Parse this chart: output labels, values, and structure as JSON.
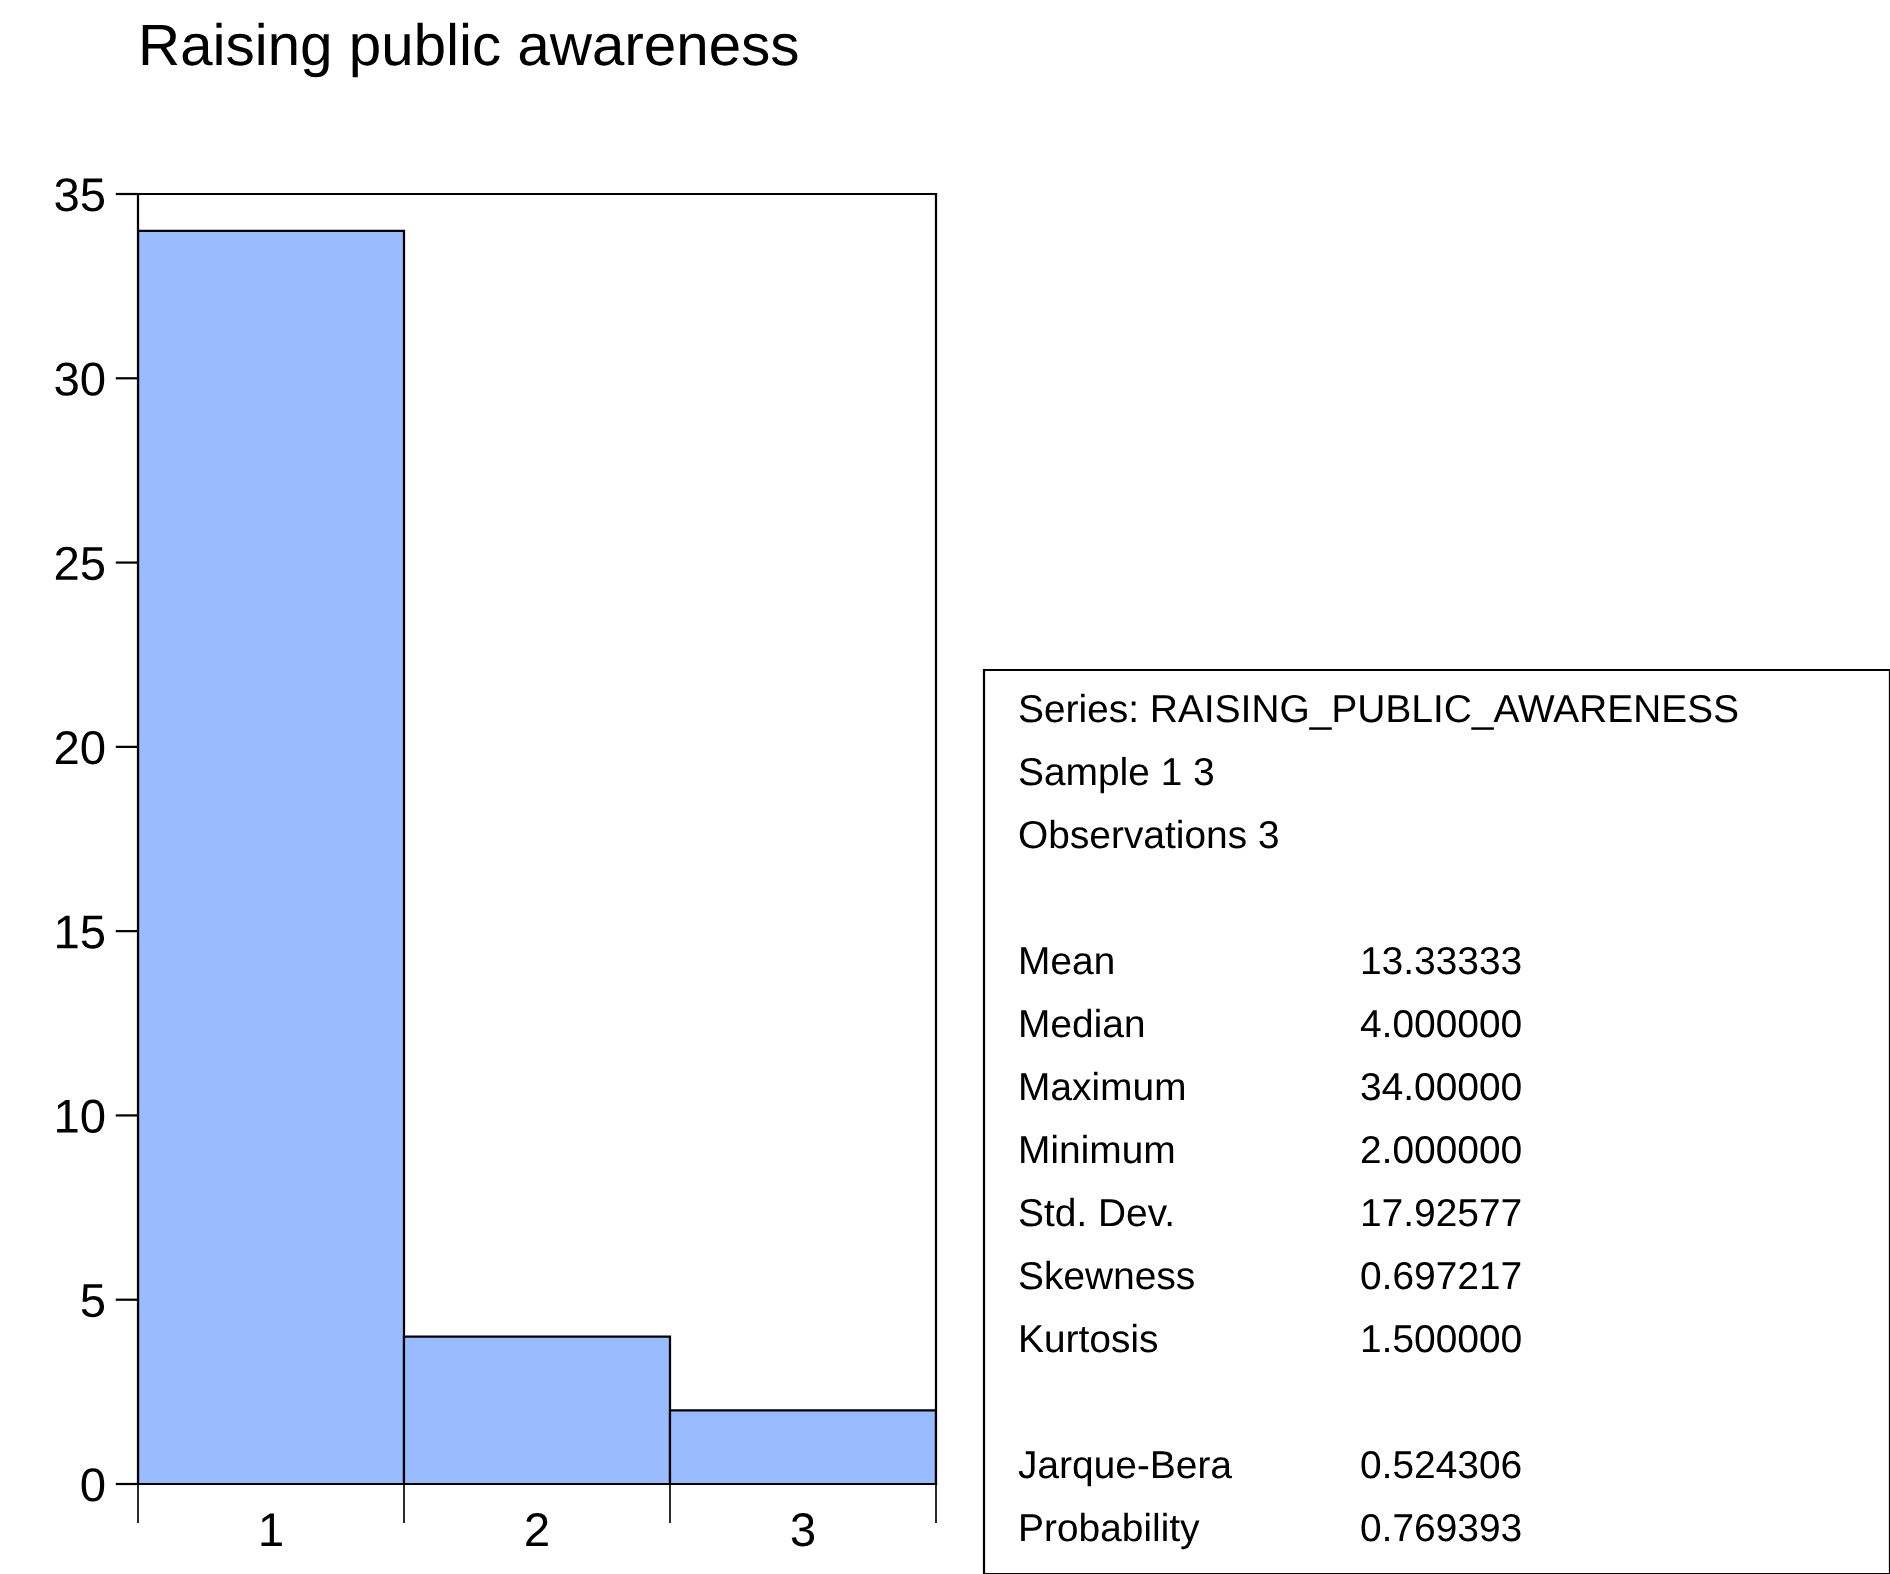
{
  "chart_data": {
    "type": "bar",
    "title": "Raising public awareness",
    "categories": [
      "1",
      "2",
      "3"
    ],
    "values": [
      34,
      4,
      2
    ],
    "color": "#99bbff",
    "ylim": [
      0,
      35
    ],
    "yticks": [
      0,
      5,
      10,
      15,
      20,
      25,
      30,
      35
    ],
    "grid": false,
    "legend": false,
    "annotations": [
      "Series: RAISING_PUBLIC_AWARENESS",
      "Sample 1 3",
      "Observations 3",
      "Mean",
      "13.33333",
      "Median",
      "4.000000",
      "Maximum",
      "34.00000",
      "Minimum",
      "2.000000",
      "Std. Dev.",
      "17.92577",
      "Skewness",
      "0.697217",
      "Kurtosis",
      "1.500000",
      "Jarque-Bera",
      "0.524306",
      "Probability",
      "0.769393"
    ]
  }
}
